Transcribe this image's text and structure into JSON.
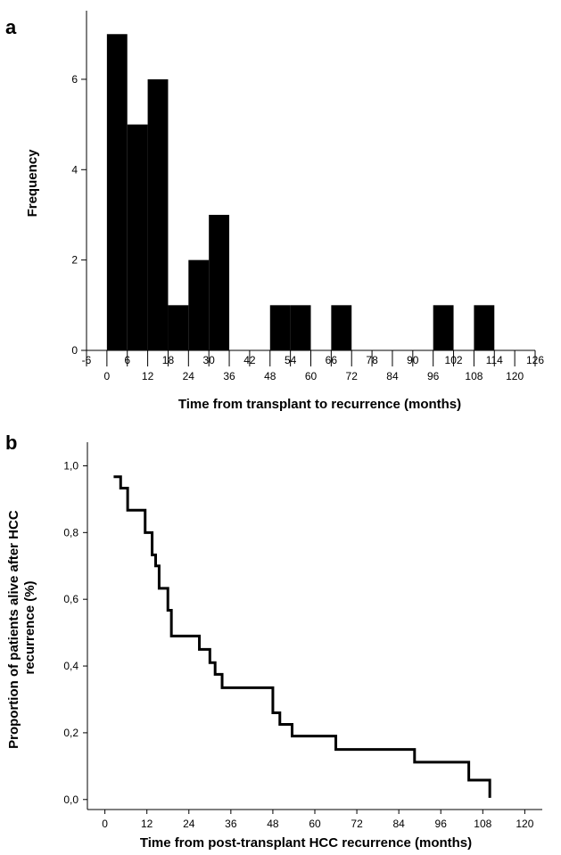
{
  "chart_data": [
    {
      "panel_label": "a",
      "type": "bar",
      "subtype": "histogram",
      "title": "",
      "xlabel": "Time from transplant to recurrence (months)",
      "ylabel": "Frequency",
      "bin_width": 6,
      "bin_starts": [
        0,
        6,
        12,
        18,
        24,
        30,
        36,
        42,
        48,
        54,
        60,
        66,
        72,
        78,
        84,
        90,
        96,
        102,
        108,
        114,
        120
      ],
      "values": [
        7,
        5,
        6,
        1,
        2,
        3,
        0,
        0,
        1,
        1,
        0,
        1,
        0,
        0,
        0,
        0,
        1,
        0,
        1,
        0,
        0
      ],
      "xlim": [
        -6,
        126
      ],
      "ylim": [
        0,
        7.4
      ],
      "x_ticks_lower": [
        "-6",
        "0",
        "6",
        "12",
        "18",
        "24",
        "30",
        "36",
        "42",
        "48",
        "54",
        "60",
        "66",
        "72",
        "78",
        "84",
        "90",
        "96",
        "102",
        "108",
        "114",
        "120",
        "126"
      ],
      "y_ticks": [
        "0",
        "2",
        "4",
        "6"
      ],
      "bar_color": "#000000",
      "grid": false
    },
    {
      "panel_label": "b",
      "type": "line",
      "subtype": "step",
      "title": "",
      "xlabel": "Time from post-transplant HCC recurrence (months)",
      "ylabel_line1": "Proportion of patients alive after HCC",
      "ylabel_line2": "recurrence (%)",
      "xlim": [
        -5,
        125
      ],
      "ylim": [
        -0.03,
        1.06
      ],
      "x_ticks": [
        "0",
        "12",
        "24",
        "36",
        "48",
        "60",
        "72",
        "84",
        "96",
        "108",
        "120"
      ],
      "y_ticks": [
        "0,0",
        "0,2",
        "0,4",
        "0,6",
        "0,8",
        "1,0"
      ],
      "x": [
        2.5,
        4.5,
        6.5,
        11.5,
        13.5,
        14.5,
        15.5,
        18,
        19,
        27,
        30,
        31.5,
        33.5,
        48,
        50,
        53.5,
        66,
        88.5,
        104,
        110
      ],
      "y": [
        0.967,
        0.933,
        0.867,
        0.8,
        0.733,
        0.7,
        0.633,
        0.567,
        0.49,
        0.45,
        0.41,
        0.375,
        0.335,
        0.26,
        0.225,
        0.19,
        0.15,
        0.112,
        0.058,
        0.005
      ],
      "line_color": "#000000",
      "grid": false
    }
  ]
}
